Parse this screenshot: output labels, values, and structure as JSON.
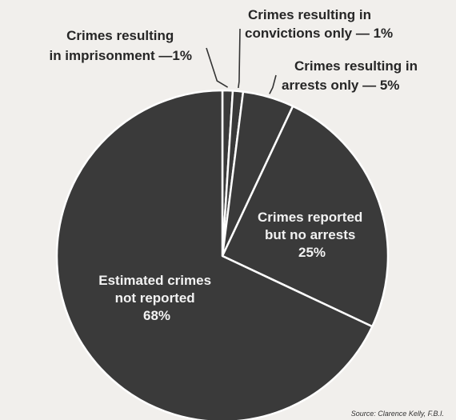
{
  "chart_data": {
    "type": "pie",
    "slices": [
      {
        "label": "Crimes resulting in imprisonment",
        "value": 1,
        "display": "1%"
      },
      {
        "label": "Crimes resulting in convictions only",
        "value": 1,
        "display": "1%"
      },
      {
        "label": "Crimes resulting in arrests only",
        "value": 5,
        "display": "5%"
      },
      {
        "label": "Crimes reported but no arrests",
        "value": 25,
        "display": "25%"
      },
      {
        "label": "Estimated crimes not reported",
        "value": 68,
        "display": "68%"
      }
    ],
    "colors": {
      "slice_fill": "#3a3a3a",
      "slice_edge": "#ffffff",
      "background": "#f1efec"
    }
  },
  "labels": {
    "imprisonment": {
      "line1": "Crimes resulting",
      "line2": "in imprisonment —1%"
    },
    "convictions": {
      "line1": "Crimes resulting in",
      "line2": "convictions only — 1%"
    },
    "arrests": {
      "line1": "Crimes resulting in",
      "line2": "arrests only — 5%"
    },
    "reported": {
      "line1": "Crimes reported",
      "line2": "but no arrests",
      "line3": "25%"
    },
    "not_reported": {
      "line1": "Estimated crimes",
      "line2": "not reported",
      "line3": "68%"
    }
  },
  "source": "Source: Clarence Kelly, F.B.I."
}
